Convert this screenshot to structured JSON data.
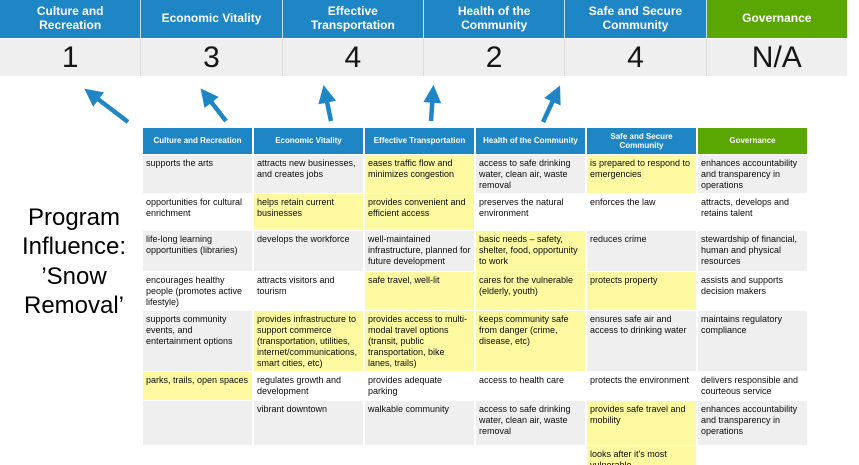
{
  "colors": {
    "header_blue": "#1E86C5",
    "header_green": "#5AA703",
    "highlight_yellow": "#FCF9A1",
    "row_alt_gray": "#EFEFEF",
    "arrow_blue": "#1E86C5"
  },
  "priority_banner": {
    "columns": [
      {
        "label": "Culture and Recreation",
        "score": "1",
        "theme": "blue"
      },
      {
        "label": "Economic Vitality",
        "score": "3",
        "theme": "blue"
      },
      {
        "label": "Effective Transportation",
        "score": "4",
        "theme": "blue"
      },
      {
        "label": "Health of the Community",
        "score": "2",
        "theme": "blue"
      },
      {
        "label": "Safe and Secure Community",
        "score": "4",
        "theme": "blue"
      },
      {
        "label": "Governance",
        "score": "N/A",
        "theme": "green"
      }
    ]
  },
  "program_label": {
    "lines": [
      "Program",
      "Influence:",
      "’Snow",
      "Removal’"
    ]
  },
  "matrix": {
    "headers": [
      {
        "label": "Culture and Recreation",
        "theme": "blue"
      },
      {
        "label": "Economic Vitality",
        "theme": "blue"
      },
      {
        "label": "Effective Transportation",
        "theme": "blue"
      },
      {
        "label": "Health of the Community",
        "theme": "blue"
      },
      {
        "label": "Safe and Secure Community",
        "theme": "blue"
      },
      {
        "label": "Governance",
        "theme": "green"
      }
    ],
    "rows": [
      {
        "cells": [
          {
            "text": "supports the arts",
            "highlight": false
          },
          {
            "text": "attracts new businesses, and creates jobs",
            "highlight": false
          },
          {
            "text": "eases traffic flow and minimizes congestion",
            "highlight": true
          },
          {
            "text": "access to safe drinking water, clean air, waste removal",
            "highlight": false
          },
          {
            "text": "is prepared to respond to emergencies",
            "highlight": true
          },
          {
            "text": "enhances accountability and transparency in operations",
            "highlight": false
          }
        ]
      },
      {
        "cells": [
          {
            "text": "opportunities for cultural enrichment",
            "highlight": false
          },
          {
            "text": "helps retain current businesses",
            "highlight": true
          },
          {
            "text": "provides convenient and efficient access",
            "highlight": true
          },
          {
            "text": "preserves the natural environment",
            "highlight": false
          },
          {
            "text": "enforces the law",
            "highlight": false
          },
          {
            "text": "attracts, develops and retains talent",
            "highlight": false
          }
        ]
      },
      {
        "cells": [
          {
            "text": "life-long learning opportunities (libraries)",
            "highlight": false
          },
          {
            "text": "develops the workforce",
            "highlight": false
          },
          {
            "text": "well-maintained infrastructure, planned for future development",
            "highlight": false
          },
          {
            "text": "basic needs – safety, shelter, food, opportunity to work",
            "highlight": true
          },
          {
            "text": "reduces crime",
            "highlight": false
          },
          {
            "text": "stewardship of financial, human and physical resources",
            "highlight": false
          }
        ]
      },
      {
        "cells": [
          {
            "text": "encourages healthy people (promotes active lifestyle)",
            "highlight": false
          },
          {
            "text": "attracts visitors and tourism",
            "highlight": false
          },
          {
            "text": "safe travel, well-lit",
            "highlight": true
          },
          {
            "text": "cares for the vulnerable (elderly, youth)",
            "highlight": true
          },
          {
            "text": "protects property",
            "highlight": true
          },
          {
            "text": "assists and supports decision makers",
            "highlight": false
          }
        ]
      },
      {
        "cells": [
          {
            "text": "supports community events, and entertainment options",
            "highlight": false
          },
          {
            "text": "provides infrastructure to support commerce (transportation, utilities, internet/communications, smart cities, etc)",
            "highlight": true
          },
          {
            "text": "provides access to multi-modal travel options (transit, public transportation, bike lanes, trails)",
            "highlight": true
          },
          {
            "text": "keeps community safe from danger (crime, disease, etc)",
            "highlight": true
          },
          {
            "text": "ensures safe air and access to drinking water",
            "highlight": false
          },
          {
            "text": "maintains regulatory compliance",
            "highlight": false
          }
        ]
      },
      {
        "cells": [
          {
            "text": "parks, trails, open spaces",
            "highlight": true
          },
          {
            "text": "regulates growth and development",
            "highlight": false
          },
          {
            "text": "provides adequate parking",
            "highlight": false
          },
          {
            "text": "access to health care",
            "highlight": false
          },
          {
            "text": "protects the environment",
            "highlight": false
          },
          {
            "text": "delivers responsible and courteous service",
            "highlight": false
          }
        ]
      },
      {
        "cells": [
          {
            "text": "",
            "highlight": false
          },
          {
            "text": "vibrant downtown",
            "highlight": false
          },
          {
            "text": "walkable community",
            "highlight": false
          },
          {
            "text": "access to safe drinking water, clean air, waste removal",
            "highlight": false
          },
          {
            "text": "provides safe travel and mobility",
            "highlight": true
          },
          {
            "text": "enhances accountability and transparency in operations",
            "highlight": false
          }
        ]
      },
      {
        "cells": [
          {
            "text": "",
            "highlight": false
          },
          {
            "text": "",
            "highlight": false
          },
          {
            "text": "",
            "highlight": false
          },
          {
            "text": "",
            "highlight": false
          },
          {
            "text": "looks after it's most vulnerable",
            "highlight": true
          },
          {
            "text": "",
            "highlight": false
          }
        ]
      }
    ]
  }
}
